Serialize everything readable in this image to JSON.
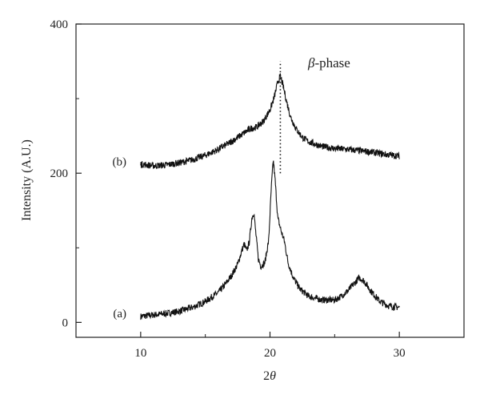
{
  "chart_data": {
    "type": "line",
    "xlabel_base": "2",
    "xlabel_symbol": "θ",
    "ylabel": "Intensity (A.U.)",
    "xlim": [
      5,
      35
    ],
    "ylim": [
      -20,
      400
    ],
    "x_ticks": [
      "10",
      "20",
      "30"
    ],
    "x_tick_values": [
      10,
      20,
      30
    ],
    "y_ticks": [
      "0",
      "200",
      "400"
    ],
    "y_tick_values": [
      0,
      200,
      400
    ],
    "grid": false,
    "annotation": {
      "symbol": "β",
      "text": "-phase",
      "x": 20.8,
      "y_from": 200,
      "y_to": 350
    },
    "series": [
      {
        "name": "(a)",
        "label_x": 8.9,
        "label_y": 12,
        "points": [
          [
            10,
            8
          ],
          [
            11,
            10
          ],
          [
            12,
            12
          ],
          [
            13,
            15
          ],
          [
            14,
            20
          ],
          [
            15,
            28
          ],
          [
            16,
            40
          ],
          [
            16.5,
            50
          ],
          [
            17,
            62
          ],
          [
            17.5,
            78
          ],
          [
            17.8,
            95
          ],
          [
            18.0,
            105
          ],
          [
            18.2,
            96
          ],
          [
            18.4,
            108
          ],
          [
            18.6,
            140
          ],
          [
            18.75,
            148
          ],
          [
            18.9,
            120
          ],
          [
            19.1,
            85
          ],
          [
            19.3,
            75
          ],
          [
            19.6,
            80
          ],
          [
            19.9,
            110
          ],
          [
            20.1,
            180
          ],
          [
            20.25,
            218
          ],
          [
            20.4,
            190
          ],
          [
            20.6,
            140
          ],
          [
            20.9,
            120
          ],
          [
            21.1,
            110
          ],
          [
            21.4,
            80
          ],
          [
            21.8,
            60
          ],
          [
            22.3,
            45
          ],
          [
            23,
            35
          ],
          [
            24,
            30
          ],
          [
            25,
            30
          ],
          [
            25.5,
            35
          ],
          [
            26,
            42
          ],
          [
            26.5,
            52
          ],
          [
            26.9,
            60
          ],
          [
            27.3,
            55
          ],
          [
            27.8,
            42
          ],
          [
            28.5,
            28
          ],
          [
            29.2,
            22
          ],
          [
            30,
            20
          ]
        ]
      },
      {
        "name": "(b)",
        "label_x": 8.9,
        "label_y": 216,
        "points": [
          [
            10,
            212
          ],
          [
            11,
            210
          ],
          [
            12,
            211
          ],
          [
            13,
            214
          ],
          [
            14,
            218
          ],
          [
            15,
            224
          ],
          [
            16,
            232
          ],
          [
            17,
            242
          ],
          [
            18,
            254
          ],
          [
            18.5,
            260
          ],
          [
            19,
            262
          ],
          [
            19.5,
            270
          ],
          [
            20,
            285
          ],
          [
            20.3,
            300
          ],
          [
            20.6,
            322
          ],
          [
            20.8,
            330
          ],
          [
            21.0,
            318
          ],
          [
            21.3,
            295
          ],
          [
            21.6,
            275
          ],
          [
            22,
            260
          ],
          [
            22.5,
            248
          ],
          [
            23,
            242
          ],
          [
            24,
            236
          ],
          [
            25,
            233
          ],
          [
            26,
            232
          ],
          [
            27,
            230
          ],
          [
            28,
            228
          ],
          [
            29,
            225
          ],
          [
            30,
            223
          ]
        ]
      }
    ]
  }
}
